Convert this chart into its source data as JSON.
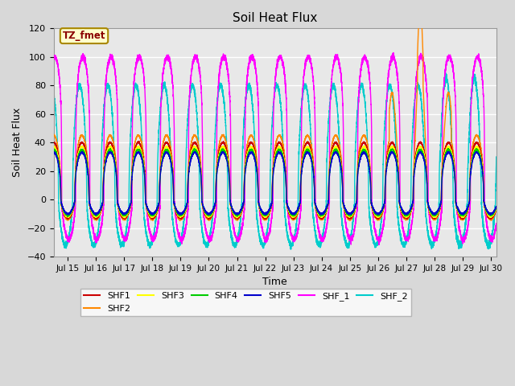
{
  "title": "Soil Heat Flux",
  "xlabel": "Time",
  "ylabel": "Soil Heat Flux",
  "xlim_days": [
    14.5,
    30.2
  ],
  "ylim": [
    -40,
    120
  ],
  "yticks": [
    -40,
    -20,
    0,
    20,
    40,
    60,
    80,
    100,
    120
  ],
  "xtick_labels": [
    "Jul 15",
    "Jul 16",
    "Jul 17",
    "Jul 18",
    "Jul 19",
    "Jul 20",
    "Jul 21",
    "Jul 22",
    "Jul 23",
    "Jul 24",
    "Jul 25",
    "Jul 26",
    "Jul 27",
    "Jul 28",
    "Jul 29",
    "Jul 30"
  ],
  "xtick_days": [
    15,
    16,
    17,
    18,
    19,
    20,
    21,
    22,
    23,
    24,
    25,
    26,
    27,
    28,
    29,
    30
  ],
  "series_colors": {
    "SHF1": "#cc0000",
    "SHF2": "#ff8800",
    "SHF3": "#ffff00",
    "SHF4": "#00cc00",
    "SHF5": "#0000cc",
    "SHF_1": "#ff00ff",
    "SHF_2": "#00cccc"
  },
  "legend_label": "TZ_fmet",
  "legend_box_color": "#ffffcc",
  "legend_box_edge": "#aa8800",
  "plot_bg_color": "#e8e8e8",
  "fig_bg_color": "#d8d8d8",
  "grid_color": "#ffffff",
  "n_points": 7200
}
